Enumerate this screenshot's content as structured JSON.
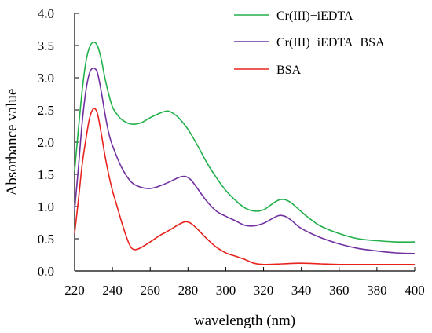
{
  "chart_data": {
    "type": "line",
    "title": "",
    "xlabel": "wavelength (nm)",
    "ylabel": "Absorbance value",
    "xlim": [
      220,
      400
    ],
    "ylim": [
      0.0,
      4.0
    ],
    "x_ticks": [
      "220",
      "240",
      "260",
      "280",
      "300",
      "320",
      "340",
      "360",
      "380",
      "400"
    ],
    "x_tick_values": [
      220,
      240,
      260,
      280,
      300,
      320,
      340,
      360,
      380,
      400
    ],
    "y_ticks": [
      "0.0",
      "0.5",
      "1.0",
      "1.5",
      "2.0",
      "2.5",
      "3.0",
      "3.5",
      "4.0"
    ],
    "y_tick_values": [
      0.0,
      0.5,
      1.0,
      1.5,
      2.0,
      2.5,
      3.0,
      3.5,
      4.0
    ],
    "grid": false,
    "legend_position": "top-right",
    "series": [
      {
        "name": "Cr(III)−iEDTA",
        "color": "#22b04b",
        "x": [
          220,
          222,
          224,
          226,
          228,
          230,
          232,
          234,
          236,
          238,
          240,
          242,
          245,
          250,
          255,
          260,
          265,
          268,
          270,
          272,
          275,
          280,
          285,
          290,
          295,
          300,
          305,
          310,
          315,
          320,
          325,
          328,
          330,
          332,
          335,
          340,
          345,
          350,
          360,
          370,
          380,
          390,
          400
        ],
        "y": [
          1.55,
          2.2,
          2.8,
          3.25,
          3.48,
          3.55,
          3.5,
          3.3,
          3.0,
          2.75,
          2.55,
          2.45,
          2.35,
          2.28,
          2.3,
          2.38,
          2.45,
          2.48,
          2.48,
          2.45,
          2.38,
          2.2,
          1.95,
          1.68,
          1.45,
          1.25,
          1.1,
          0.98,
          0.93,
          0.95,
          1.05,
          1.1,
          1.11,
          1.1,
          1.05,
          0.92,
          0.8,
          0.7,
          0.58,
          0.5,
          0.47,
          0.45,
          0.45
        ]
      },
      {
        "name": "Cr(III)−iEDTA−BSA",
        "color": "#7030a0",
        "x": [
          220,
          222,
          224,
          226,
          228,
          230,
          232,
          234,
          236,
          238,
          240,
          245,
          250,
          255,
          260,
          265,
          270,
          275,
          278,
          280,
          282,
          285,
          290,
          295,
          300,
          305,
          310,
          315,
          320,
          325,
          328,
          330,
          332,
          335,
          340,
          350,
          360,
          370,
          380,
          390,
          400
        ],
        "y": [
          0.95,
          1.6,
          2.3,
          2.8,
          3.08,
          3.15,
          3.08,
          2.8,
          2.45,
          2.15,
          1.95,
          1.6,
          1.38,
          1.3,
          1.28,
          1.32,
          1.38,
          1.45,
          1.47,
          1.45,
          1.4,
          1.28,
          1.08,
          0.93,
          0.85,
          0.78,
          0.71,
          0.7,
          0.74,
          0.82,
          0.86,
          0.86,
          0.84,
          0.78,
          0.66,
          0.52,
          0.42,
          0.35,
          0.31,
          0.28,
          0.27
        ]
      },
      {
        "name": "BSA",
        "color": "#e8231e",
        "x": [
          220,
          222,
          224,
          226,
          228,
          230,
          232,
          234,
          236,
          238,
          240,
          242,
          245,
          248,
          250,
          252,
          255,
          260,
          265,
          270,
          275,
          278,
          280,
          282,
          285,
          290,
          295,
          300,
          305,
          310,
          315,
          320,
          330,
          340,
          350,
          360,
          370,
          380,
          390,
          400
        ],
        "y": [
          0.58,
          1.1,
          1.65,
          2.05,
          2.38,
          2.52,
          2.45,
          2.15,
          1.8,
          1.5,
          1.25,
          1.05,
          0.75,
          0.48,
          0.36,
          0.33,
          0.36,
          0.45,
          0.55,
          0.63,
          0.72,
          0.76,
          0.76,
          0.73,
          0.65,
          0.5,
          0.37,
          0.28,
          0.23,
          0.18,
          0.12,
          0.1,
          0.11,
          0.12,
          0.11,
          0.1,
          0.1,
          0.1,
          0.1,
          0.1
        ]
      }
    ]
  }
}
